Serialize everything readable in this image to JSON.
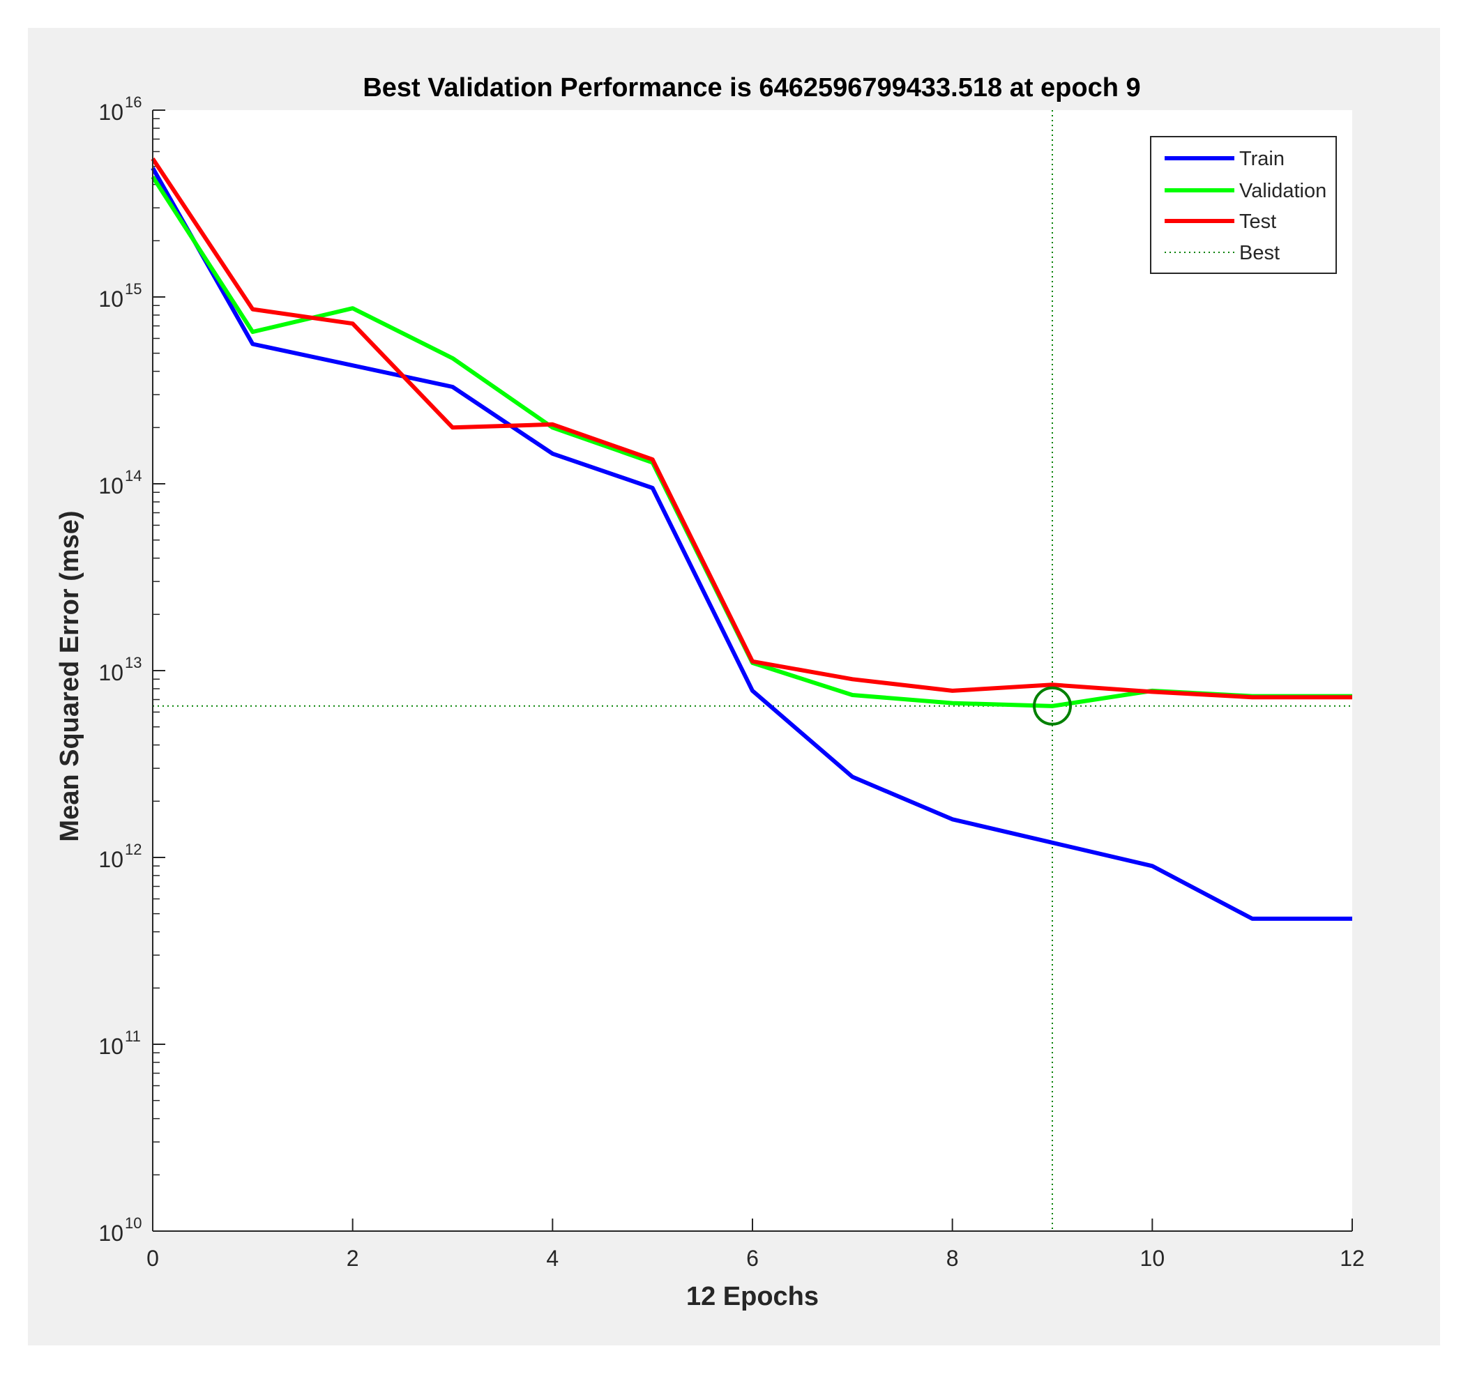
{
  "chart_data": {
    "type": "line",
    "title": "Best Validation Performance is 6462596799433.518 at epoch 9",
    "xlabel": "12 Epochs",
    "ylabel": "Mean Squared Error  (mse)",
    "xlim": [
      0,
      12
    ],
    "ylim": [
      10000000000.0,
      1e+16
    ],
    "yscale": "log",
    "xticks": [
      "0",
      "2",
      "4",
      "6",
      "8",
      "10",
      "12"
    ],
    "yticks": [
      {
        "base": "10",
        "exp": "10"
      },
      {
        "base": "10",
        "exp": "11"
      },
      {
        "base": "10",
        "exp": "12"
      },
      {
        "base": "10",
        "exp": "13"
      },
      {
        "base": "10",
        "exp": "14"
      },
      {
        "base": "10",
        "exp": "15"
      },
      {
        "base": "10",
        "exp": "16"
      }
    ],
    "x": [
      0,
      1,
      2,
      3,
      4,
      5,
      6,
      7,
      8,
      9,
      10,
      11,
      12
    ],
    "series": [
      {
        "name": "Train",
        "color": "#0000ff",
        "values": [
          4900000000000000.0,
          560000000000000.0,
          430000000000000.0,
          330000000000000.0,
          145000000000000.0,
          95000000000000.0,
          7800000000000.0,
          2700000000000.0,
          1600000000000.0,
          1200000000000.0,
          900000000000.0,
          470000000000.0,
          470000000000.0
        ]
      },
      {
        "name": "Validation",
        "color": "#00ff00",
        "values": [
          4400000000000000.0,
          650000000000000.0,
          870000000000000.0,
          470000000000000.0,
          200000000000000.0,
          130000000000000.0,
          11000000000000.0,
          7400000000000.0,
          6700000000000.0,
          6460000000000.0,
          7800000000000.0,
          7300000000000.0,
          7300000000000.0
        ]
      },
      {
        "name": "Test",
        "color": "#ff0000",
        "values": [
          5500000000000000.0,
          860000000000000.0,
          720000000000000.0,
          200000000000000.0,
          208000000000000.0,
          135000000000000.0,
          11200000000000.0,
          9000000000000.0,
          7800000000000.0,
          8400000000000.0,
          7700000000000.0,
          7200000000000.0,
          7200000000000.0
        ]
      }
    ],
    "best": {
      "name": "Best",
      "epoch": 9,
      "value": 6462596799433.518,
      "color": "#008000"
    },
    "legend_position": "top-right",
    "grid": false
  }
}
